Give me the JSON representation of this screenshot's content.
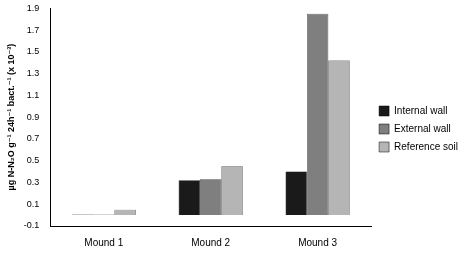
{
  "chart_data": {
    "type": "bar",
    "y_label": "µg N-N₂O g⁻¹ 24h⁻¹ bact.⁻¹ (x 10⁻³)",
    "categories": [
      "Mound 1",
      "Mound 2",
      "Mound 3"
    ],
    "series": [
      {
        "name": "Internal wall",
        "color": "#1a1a1a",
        "values": [
          0.005,
          0.32,
          0.4
        ]
      },
      {
        "name": "External wall",
        "color": "#7f7f7f",
        "values": [
          0.005,
          0.33,
          1.85
        ]
      },
      {
        "name": "Reference soil",
        "color": "#b5b5b5",
        "values": [
          0.05,
          0.45,
          1.42
        ]
      }
    ],
    "ylim": [
      -0.1,
      1.9
    ],
    "yticks": [
      -0.1,
      0.1,
      0.3,
      0.5,
      0.7,
      0.9,
      1.1,
      1.3,
      1.5,
      1.7,
      1.9
    ],
    "grid": false,
    "legend": "right"
  }
}
